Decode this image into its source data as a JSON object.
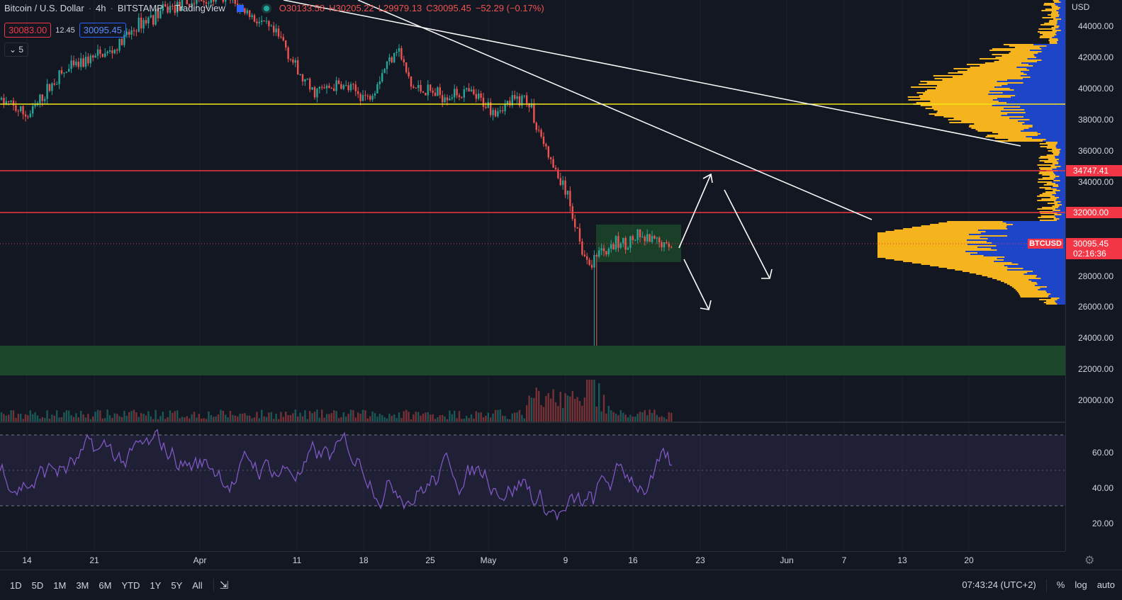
{
  "header": {
    "symbol": "Bitcoin / U.S. Dollar",
    "interval": "4h",
    "exchange": "BITSTAMP",
    "source": "TradingView",
    "open": "O30133.58",
    "high": "H30205.22",
    "low": "L29979.13",
    "close": "C30095.45",
    "change": "−52.29 (−0.17%)"
  },
  "quote": {
    "bid": "30083.00",
    "spread": "12.45",
    "ask": "30095.45"
  },
  "indicator_count": "5",
  "price_axis": {
    "currency": "USD",
    "labels": [
      "44000.00",
      "42000.00",
      "40000.00",
      "38000.00",
      "36000.00",
      "34000.00",
      "28000.00",
      "26000.00",
      "24000.00",
      "22000.00",
      "20000.00"
    ],
    "tags": {
      "resistance_high": "34747.41",
      "resistance_low": "32000.00",
      "symbol": "BTCUSD",
      "last_price": "30095.45",
      "countdown": "02:16:36"
    }
  },
  "rsi_axis": {
    "labels": [
      "60.00",
      "40.00",
      "20.00"
    ]
  },
  "time_axis": {
    "labels": [
      "14",
      "21",
      "Apr",
      "11",
      "18",
      "25",
      "May",
      "9",
      "16",
      "23",
      "Jun",
      "7",
      "13",
      "20"
    ]
  },
  "timeframes": [
    "1D",
    "5D",
    "1M",
    "3M",
    "6M",
    "YTD",
    "1Y",
    "5Y",
    "All"
  ],
  "bottom_right": {
    "clock": "07:43:24 (UTC+2)",
    "percent": "%",
    "log": "log",
    "auto": "auto"
  },
  "colors": {
    "background": "#131722",
    "up": "#26a69a",
    "down": "#ef5350",
    "support_line": "#f5e71a",
    "resistance_line": "#f23645",
    "trend_line": "#ffffff",
    "volume_profile_up": "#f5b31d",
    "volume_profile_down": "#1e45c8",
    "zone": "#1e4d2b",
    "rsi": "#7e57c2"
  },
  "chart_data": {
    "type": "candlestick",
    "symbol": "BTCUSD",
    "interval": "4h",
    "y_range": [
      19000,
      45500
    ],
    "x_labels": [
      "14",
      "21",
      "Apr",
      "11",
      "18",
      "25",
      "May",
      "9",
      "16",
      "23",
      "Jun",
      "7",
      "13",
      "20"
    ],
    "price_path": [
      [
        0,
        39300
      ],
      [
        40,
        38200
      ],
      [
        80,
        40700
      ],
      [
        120,
        41800
      ],
      [
        160,
        42400
      ],
      [
        200,
        44300
      ],
      [
        240,
        45200
      ],
      [
        280,
        45600
      ],
      [
        320,
        45800
      ],
      [
        360,
        44500
      ],
      [
        400,
        43000
      ],
      [
        420,
        41000
      ],
      [
        440,
        39800
      ],
      [
        480,
        40200
      ],
      [
        520,
        39400
      ],
      [
        560,
        42800
      ],
      [
        580,
        40100
      ],
      [
        620,
        39600
      ],
      [
        660,
        39700
      ],
      [
        700,
        38600
      ],
      [
        740,
        39500
      ],
      [
        750,
        38500
      ],
      [
        780,
        35000
      ],
      [
        800,
        33200
      ],
      [
        815,
        30800
      ],
      [
        830,
        28400
      ],
      [
        840,
        29400
      ],
      [
        860,
        29800
      ],
      [
        900,
        30400
      ],
      [
        940,
        29900
      ],
      [
        950,
        30095
      ]
    ],
    "horizontal_levels": [
      {
        "price": 38950,
        "kind": "support"
      },
      {
        "price": 34747.41,
        "kind": "resistance"
      },
      {
        "price": 32000,
        "kind": "resistance"
      }
    ],
    "zones": [
      {
        "from": 29050,
        "to": 31350,
        "kind": "consolidation"
      },
      {
        "from": 21700,
        "to": 23500,
        "kind": "demand"
      }
    ],
    "rsi": {
      "overbought": 70,
      "midline": 50,
      "oversold": 30,
      "last": 53
    }
  }
}
